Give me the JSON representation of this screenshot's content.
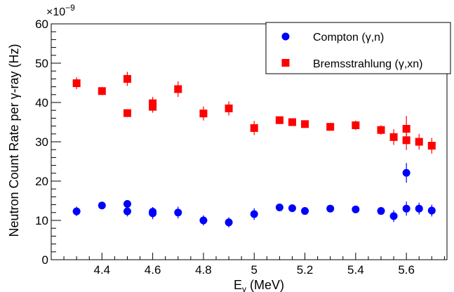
{
  "chart_data": {
    "type": "scatter",
    "xlabel_main": "E",
    "xlabel_sub": "γ",
    "xlabel_unit": " (MeV)",
    "ylabel": "Neutron Count Rate per γ-ray (Hz)",
    "y_multiplier": "×10",
    "y_multiplier_exp": "−9",
    "xlim": [
      4.2,
      5.76
    ],
    "ylim": [
      0,
      60
    ],
    "x_ticks": [
      4.4,
      4.6,
      4.8,
      5,
      5.2,
      5.4,
      5.6
    ],
    "x_tick_labels": [
      "4.4",
      "4.6",
      "4.8",
      "5",
      "5.2",
      "5.4",
      "5.6"
    ],
    "y_ticks": [
      0,
      10,
      20,
      30,
      40,
      50,
      60
    ],
    "y_tick_labels": [
      "0",
      "10",
      "20",
      "30",
      "40",
      "50",
      "60"
    ],
    "legend_position": "top-right",
    "grid": false,
    "series": [
      {
        "name": "Compton (γ,n)",
        "marker": "circle",
        "color": "#0000ff",
        "points": [
          {
            "x": 4.3,
            "y": 12.3,
            "err": 1.2
          },
          {
            "x": 4.4,
            "y": 13.8,
            "err": 0.6
          },
          {
            "x": 4.5,
            "y": 14.2,
            "err": 0.5
          },
          {
            "x": 4.5,
            "y": 12.3,
            "err": 1.3
          },
          {
            "x": 4.6,
            "y": 12.2,
            "err": 1.2
          },
          {
            "x": 4.6,
            "y": 11.8,
            "err": 1.5
          },
          {
            "x": 4.7,
            "y": 12.0,
            "err": 1.5
          },
          {
            "x": 4.8,
            "y": 10.0,
            "err": 1.3
          },
          {
            "x": 4.9,
            "y": 9.5,
            "err": 1.3
          },
          {
            "x": 5.0,
            "y": 11.6,
            "err": 1.5
          },
          {
            "x": 5.1,
            "y": 13.3,
            "err": 0.5
          },
          {
            "x": 5.15,
            "y": 13.1,
            "err": 0.5
          },
          {
            "x": 5.2,
            "y": 12.4,
            "err": 0.5
          },
          {
            "x": 5.3,
            "y": 13.0,
            "err": 0.5
          },
          {
            "x": 5.4,
            "y": 12.8,
            "err": 0.5
          },
          {
            "x": 5.5,
            "y": 12.4,
            "err": 0.6
          },
          {
            "x": 5.55,
            "y": 11.1,
            "err": 1.5
          },
          {
            "x": 5.6,
            "y": 13.0,
            "err": 1.8
          },
          {
            "x": 5.6,
            "y": 22.1,
            "err": 2.5
          },
          {
            "x": 5.65,
            "y": 13.0,
            "err": 1.5
          },
          {
            "x": 5.7,
            "y": 12.5,
            "err": 1.5
          }
        ]
      },
      {
        "name": "Bremsstrahlung (γ,xn)",
        "marker": "square",
        "color": "#ff0000",
        "points": [
          {
            "x": 4.3,
            "y": 44.9,
            "err": 1.5
          },
          {
            "x": 4.4,
            "y": 42.9,
            "err": 1.0
          },
          {
            "x": 4.5,
            "y": 46.0,
            "err": 1.8
          },
          {
            "x": 4.5,
            "y": 37.3,
            "err": 1.0
          },
          {
            "x": 4.6,
            "y": 39.8,
            "err": 1.6
          },
          {
            "x": 4.6,
            "y": 38.9,
            "err": 1.5
          },
          {
            "x": 4.7,
            "y": 43.4,
            "err": 2.0
          },
          {
            "x": 4.8,
            "y": 37.2,
            "err": 1.8
          },
          {
            "x": 4.9,
            "y": 38.5,
            "err": 1.8
          },
          {
            "x": 5.0,
            "y": 33.5,
            "err": 1.8
          },
          {
            "x": 5.1,
            "y": 35.5,
            "err": 0.6
          },
          {
            "x": 5.15,
            "y": 35.0,
            "err": 0.6
          },
          {
            "x": 5.2,
            "y": 34.5,
            "err": 0.6
          },
          {
            "x": 5.3,
            "y": 33.8,
            "err": 1.0
          },
          {
            "x": 5.4,
            "y": 34.2,
            "err": 1.2
          },
          {
            "x": 5.5,
            "y": 33.0,
            "err": 1.2
          },
          {
            "x": 5.55,
            "y": 31.2,
            "err": 2.0
          },
          {
            "x": 5.6,
            "y": 33.3,
            "err": 3.3
          },
          {
            "x": 5.6,
            "y": 30.4,
            "err": 2.5
          },
          {
            "x": 5.65,
            "y": 30.0,
            "err": 2.0
          },
          {
            "x": 5.7,
            "y": 29.0,
            "err": 2.0
          }
        ]
      }
    ]
  }
}
